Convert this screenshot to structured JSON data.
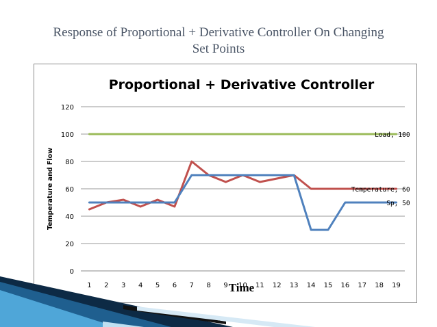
{
  "slide": {
    "title_line1": "Response of Proportional + Derivative Controller On Changing",
    "title_line2": "Set Points"
  },
  "chart_data": {
    "type": "line",
    "title": "Proportional + Derivative Controller",
    "xlabel": "Time",
    "ylabel": "Temperature and Flow",
    "x": [
      1,
      2,
      3,
      4,
      5,
      6,
      7,
      8,
      9,
      10,
      11,
      12,
      13,
      14,
      15,
      16,
      17,
      18,
      19
    ],
    "ylim": [
      0,
      120
    ],
    "yticks": [
      0,
      20,
      40,
      60,
      80,
      100,
      120
    ],
    "grid": true,
    "series": [
      {
        "name": "Load",
        "color": "#9bbb59",
        "values": [
          100,
          100,
          100,
          100,
          100,
          100,
          100,
          100,
          100,
          100,
          100,
          100,
          100,
          100,
          100,
          100,
          100,
          100,
          100
        ],
        "label": "Load, 100"
      },
      {
        "name": "Temperature",
        "color": "#c0504d",
        "values": [
          45,
          50,
          52,
          47,
          52,
          47,
          80,
          70,
          65,
          70,
          65,
          67.5,
          70,
          60,
          60,
          60,
          60,
          60,
          60
        ],
        "label": "Temperature, 60"
      },
      {
        "name": "Sp",
        "color": "#4f81bd",
        "values": [
          50,
          50,
          50,
          50,
          50,
          50,
          70,
          70,
          70,
          70,
          70,
          70,
          70,
          30,
          30,
          50,
          50,
          50,
          50
        ],
        "label": "Sp, 50"
      }
    ]
  }
}
